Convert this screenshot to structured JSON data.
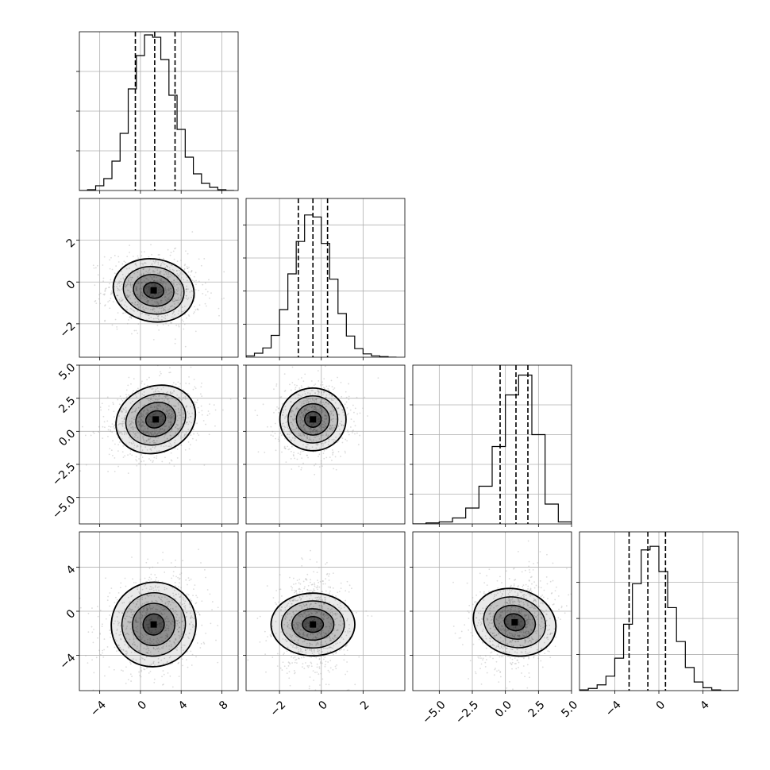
{
  "chart_data": {
    "type": "corner",
    "params": [
      {
        "range": [
          -6,
          9.6
        ],
        "ticks": [
          -4,
          0,
          4,
          8
        ],
        "tick_labels": [
          "−4",
          "0",
          "4",
          "8"
        ],
        "median": 1.4,
        "q16": -0.5,
        "q84": 3.4,
        "hist_centers": [
          -5.6,
          -4.8,
          -4.0,
          -3.2,
          -2.4,
          -1.6,
          -0.8,
          0.0,
          0.8,
          1.6,
          2.4,
          3.2,
          4.0,
          4.8,
          5.6,
          6.4,
          7.2,
          8.0,
          8.8
        ],
        "hist_counts": [
          0,
          1,
          6,
          15,
          37,
          72,
          128,
          170,
          196,
          193,
          165,
          120,
          77,
          42,
          21,
          9,
          4,
          1,
          0
        ],
        "hist_yticks": [
          50,
          100,
          150
        ],
        "hist_ymax": 200
      },
      {
        "range": [
          -3.6,
          4.0
        ],
        "ticks": [
          -2,
          0,
          2
        ],
        "tick_labels": [
          "−2",
          "0",
          "2"
        ],
        "median": -0.4,
        "q16": -1.1,
        "q84": 0.3,
        "hist_centers": [
          -3.4,
          -3.0,
          -2.6,
          -2.2,
          -1.8,
          -1.4,
          -1.0,
          -0.6,
          -0.2,
          0.2,
          0.6,
          1.0,
          1.4,
          1.8,
          2.2,
          2.6,
          3.0,
          3.4
        ],
        "hist_counts": [
          2,
          6,
          14,
          33,
          72,
          126,
          175,
          215,
          212,
          172,
          118,
          66,
          32,
          13,
          5,
          2,
          1,
          0
        ],
        "hist_yticks": [
          50,
          100,
          150,
          200
        ],
        "hist_ymax": 240
      },
      {
        "range": [
          -7,
          5
        ],
        "ticks": [
          -5.0,
          -2.5,
          0.0,
          2.5,
          5.0
        ],
        "tick_labels": [
          "−5.0",
          "−2.5",
          "0.0",
          "2.5",
          "5.0"
        ],
        "median": 0.8,
        "q16": -0.4,
        "q84": 1.7,
        "hist_centers": [
          -6.5,
          -5.5,
          -4.5,
          -3.5,
          -2.5,
          -1.5,
          -0.5,
          0.5,
          1.5,
          2.5,
          3.5,
          4.5
        ],
        "hist_counts": [
          0,
          1,
          2,
          6,
          16,
          38,
          78,
          130,
          150,
          90,
          20,
          2
        ],
        "hist_yticks": [
          30,
          60,
          90,
          120
        ],
        "hist_ymax": 160
      },
      {
        "range": [
          -7.2,
          7.2
        ],
        "ticks": [
          -4,
          0,
          4
        ],
        "tick_labels": [
          "−4",
          "0",
          "4"
        ],
        "median": -1.0,
        "q16": -2.7,
        "q84": 0.6,
        "hist_centers": [
          -6.8,
          -6.0,
          -5.2,
          -4.4,
          -3.6,
          -2.8,
          -2.0,
          -1.2,
          -0.4,
          0.4,
          1.2,
          2.0,
          2.8,
          3.6,
          4.4,
          5.2,
          6.0,
          6.8
        ],
        "hist_counts": [
          1,
          3,
          8,
          20,
          45,
          92,
          148,
          195,
          200,
          165,
          115,
          68,
          32,
          12,
          4,
          1,
          0,
          0
        ],
        "hist_yticks": [
          50,
          100,
          150
        ],
        "hist_ymax": 220
      }
    ],
    "pairs": [
      {
        "row": 1,
        "col": 0,
        "mean": [
          1.3,
          -0.4
        ],
        "sd": [
          2.0,
          0.75
        ],
        "rho": -0.1
      },
      {
        "row": 2,
        "col": 0,
        "mean": [
          1.5,
          0.9
        ],
        "sd": [
          2.0,
          1.25
        ],
        "rho": 0.2
      },
      {
        "row": 2,
        "col": 1,
        "mean": [
          -0.4,
          0.9
        ],
        "sd": [
          0.75,
          1.25
        ],
        "rho": 0.0
      },
      {
        "row": 3,
        "col": 0,
        "mean": [
          1.3,
          -1.2
        ],
        "sd": [
          2.1,
          1.9
        ],
        "rho": 0.18
      },
      {
        "row": 3,
        "col": 1,
        "mean": [
          -0.4,
          -1.2
        ],
        "sd": [
          0.75,
          1.9
        ],
        "rho": 0.0
      },
      {
        "row": 3,
        "col": 2,
        "mean": [
          0.7,
          -1.0
        ],
        "sd": [
          1.25,
          1.9
        ],
        "rho": 0.15
      }
    ],
    "grid": true,
    "legend": "none",
    "title": "",
    "colors": {
      "line": "#000000",
      "grid": "#b0b0b0",
      "points": "#9a9a9a",
      "density": "#000000"
    }
  }
}
